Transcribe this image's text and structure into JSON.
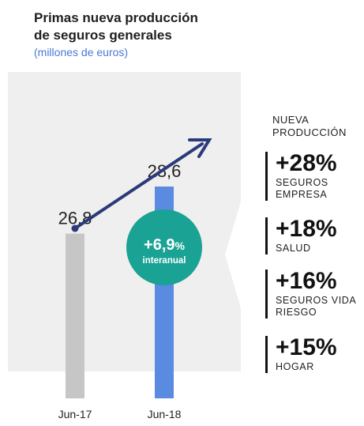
{
  "title_lines": [
    "Primas nueva producción",
    "de seguros generales"
  ],
  "subtitle": "(millones de euros)",
  "chart_data": {
    "type": "bar",
    "title": "Primas nueva producción de seguros generales",
    "ylabel": "(millones de euros)",
    "categories": [
      "Jun-17",
      "Jun-18"
    ],
    "values": [
      26.8,
      28.6
    ],
    "value_labels": [
      "26,8",
      "28,6"
    ],
    "colors": [
      "#c6c6c6",
      "#5b8be0"
    ],
    "badge": {
      "value": "+6,9",
      "unit": "%",
      "label": "interanual",
      "color": "#1aa295"
    }
  },
  "side_panel": {
    "header": "NUEVA\nPRODUCCIÓN",
    "items": [
      {
        "pct": "+28%",
        "label": "SEGUROS\nEMPRESA"
      },
      {
        "pct": "+18%",
        "label": "SALUD"
      },
      {
        "pct": "+16%",
        "label": "SEGUROS VIDA\nRIESGO"
      },
      {
        "pct": "+15%",
        "label": "HOGAR"
      }
    ]
  },
  "colors": {
    "panel_bg": "#efefef",
    "arrow": "#2b3a7a",
    "subtitle": "#4a78d6"
  }
}
